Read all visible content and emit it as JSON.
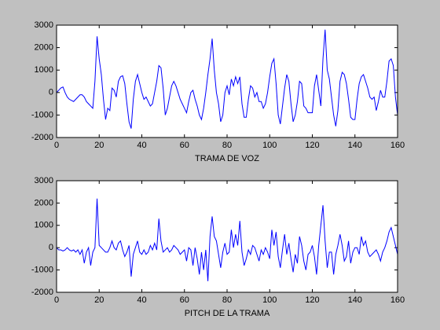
{
  "chart_data": [
    {
      "type": "line",
      "xlabel": "TRAMA DE VOZ",
      "color": "#0000ff",
      "xlim": [
        0,
        160
      ],
      "ylim": [
        -2000,
        3000
      ],
      "xticks": [
        0,
        20,
        40,
        60,
        80,
        100,
        120,
        140,
        160
      ],
      "yticks": [
        -2000,
        -1000,
        0,
        1000,
        2000,
        3000
      ],
      "x": [
        0,
        1,
        2,
        3,
        4,
        5,
        6,
        7,
        8,
        9,
        10,
        11,
        12,
        13,
        14,
        15,
        16,
        17,
        18,
        19,
        20,
        21,
        22,
        23,
        24,
        25,
        26,
        27,
        28,
        29,
        30,
        31,
        32,
        33,
        34,
        35,
        36,
        37,
        38,
        39,
        40,
        41,
        42,
        43,
        44,
        45,
        46,
        47,
        48,
        49,
        50,
        51,
        52,
        53,
        54,
        55,
        56,
        57,
        58,
        59,
        60,
        61,
        62,
        63,
        64,
        65,
        66,
        67,
        68,
        69,
        70,
        71,
        72,
        73,
        74,
        75,
        76,
        77,
        78,
        79,
        80,
        81,
        82,
        83,
        84,
        85,
        86,
        87,
        88,
        89,
        90,
        91,
        92,
        93,
        94,
        95,
        96,
        97,
        98,
        99,
        100,
        101,
        102,
        103,
        104,
        105,
        106,
        107,
        108,
        109,
        110,
        111,
        112,
        113,
        114,
        115,
        116,
        117,
        118,
        119,
        120,
        121,
        122,
        123,
        124,
        125,
        126,
        127,
        128,
        129,
        130,
        131,
        132,
        133,
        134,
        135,
        136,
        137,
        138,
        139,
        140,
        141,
        142,
        143,
        144,
        145,
        146,
        147,
        148,
        149,
        150,
        151,
        152,
        153,
        154,
        155,
        156,
        157,
        158,
        159,
        160
      ],
      "values": [
        0,
        100,
        200,
        250,
        0,
        -200,
        -300,
        -350,
        -400,
        -300,
        -200,
        -100,
        -100,
        -200,
        -400,
        -500,
        -600,
        -700,
        500,
        2500,
        1500,
        800,
        -300,
        -1200,
        -700,
        -800,
        200,
        100,
        -200,
        500,
        700,
        750,
        400,
        -500,
        -1300,
        -1600,
        -300,
        500,
        800,
        400,
        0,
        -300,
        -200,
        -400,
        -600,
        -500,
        0,
        500,
        1200,
        1100,
        200,
        -1000,
        -700,
        -200,
        300,
        500,
        300,
        0,
        -300,
        -500,
        -700,
        -900,
        -400,
        0,
        100,
        -300,
        -600,
        -1000,
        -1200,
        -700,
        0,
        800,
        1500,
        2400,
        1000,
        0,
        -500,
        -1300,
        -1000,
        0,
        300,
        -100,
        600,
        300,
        700,
        400,
        700,
        -500,
        -1100,
        -1100,
        -300,
        300,
        200,
        -200,
        0,
        -400,
        -400,
        -700,
        -500,
        0,
        700,
        1300,
        1500,
        400,
        -1000,
        -1400,
        -600,
        200,
        800,
        500,
        -500,
        -1300,
        -1000,
        -400,
        500,
        400,
        -600,
        -700,
        -900,
        -900,
        -900,
        300,
        800,
        100,
        -600,
        1500,
        2800,
        1000,
        600,
        -200,
        -1000,
        -1500,
        -800,
        500,
        900,
        800,
        400,
        -300,
        -1100,
        -1200,
        -1200,
        -300,
        400,
        700,
        800,
        500,
        200,
        -200,
        -300,
        -200,
        -800,
        -400,
        100,
        -200,
        -200,
        500,
        1400,
        1500,
        1200,
        -200,
        -1000
      ]
    },
    {
      "type": "line",
      "xlabel": "PITCH DE LA TRAMA",
      "color": "#0000ff",
      "xlim": [
        0,
        160
      ],
      "ylim": [
        -2000,
        3000
      ],
      "xticks": [
        0,
        20,
        40,
        60,
        80,
        100,
        120,
        140,
        160
      ],
      "yticks": [
        -2000,
        -1000,
        0,
        1000,
        2000,
        3000
      ],
      "x": [
        0,
        1,
        2,
        3,
        4,
        5,
        6,
        7,
        8,
        9,
        10,
        11,
        12,
        13,
        14,
        15,
        16,
        17,
        18,
        19,
        20,
        21,
        22,
        23,
        24,
        25,
        26,
        27,
        28,
        29,
        30,
        31,
        32,
        33,
        34,
        35,
        36,
        37,
        38,
        39,
        40,
        41,
        42,
        43,
        44,
        45,
        46,
        47,
        48,
        49,
        50,
        51,
        52,
        53,
        54,
        55,
        56,
        57,
        58,
        59,
        60,
        61,
        62,
        63,
        64,
        65,
        66,
        67,
        68,
        69,
        70,
        71,
        72,
        73,
        74,
        75,
        76,
        77,
        78,
        79,
        80,
        81,
        82,
        83,
        84,
        85,
        86,
        87,
        88,
        89,
        90,
        91,
        92,
        93,
        94,
        95,
        96,
        97,
        98,
        99,
        100,
        101,
        102,
        103,
        104,
        105,
        106,
        107,
        108,
        109,
        110,
        111,
        112,
        113,
        114,
        115,
        116,
        117,
        118,
        119,
        120,
        121,
        122,
        123,
        124,
        125,
        126,
        127,
        128,
        129,
        130,
        131,
        132,
        133,
        134,
        135,
        136,
        137,
        138,
        139,
        140,
        141,
        142,
        143,
        144,
        145,
        146,
        147,
        148,
        149,
        150,
        151,
        152,
        153,
        154,
        155,
        156,
        157,
        158,
        159,
        160
      ],
      "values": [
        0,
        -100,
        -100,
        -150,
        -100,
        0,
        -100,
        -150,
        -100,
        -200,
        -100,
        -300,
        -100,
        -700,
        -200,
        0,
        -800,
        -200,
        0,
        2200,
        100,
        0,
        -100,
        -200,
        -200,
        0,
        300,
        0,
        -100,
        200,
        300,
        -100,
        -400,
        -200,
        100,
        -1300,
        -300,
        0,
        300,
        -200,
        -300,
        -100,
        -300,
        -200,
        100,
        -100,
        200,
        -100,
        1300,
        300,
        -200,
        -100,
        0,
        -200,
        -100,
        100,
        0,
        -100,
        -300,
        -200,
        -100,
        -600,
        0,
        -100,
        -800,
        0,
        -500,
        -1200,
        -200,
        -1000,
        -100,
        -1500,
        500,
        1400,
        500,
        300,
        -300,
        -900,
        -200,
        200,
        -300,
        -200,
        800,
        0,
        600,
        100,
        1200,
        -200,
        -800,
        -500,
        -100,
        -300,
        100,
        0,
        -300,
        -600,
        -100,
        -300,
        0,
        -200,
        -500,
        800,
        100,
        700,
        -400,
        -900,
        -100,
        600,
        -300,
        200,
        -500,
        -1100,
        -300,
        -700,
        500,
        100,
        -600,
        -1000,
        -300,
        -200,
        100,
        -400,
        -1200,
        100,
        1000,
        1900,
        300,
        -900,
        -200,
        -200,
        -1200,
        -300,
        100,
        600,
        100,
        -600,
        -400,
        300,
        -700,
        -200,
        0,
        0,
        -300,
        500,
        100,
        300,
        -200,
        -400,
        -300,
        -200,
        -100,
        -300,
        -600,
        -200,
        0,
        300,
        700,
        900,
        500,
        100,
        -300
      ]
    }
  ]
}
